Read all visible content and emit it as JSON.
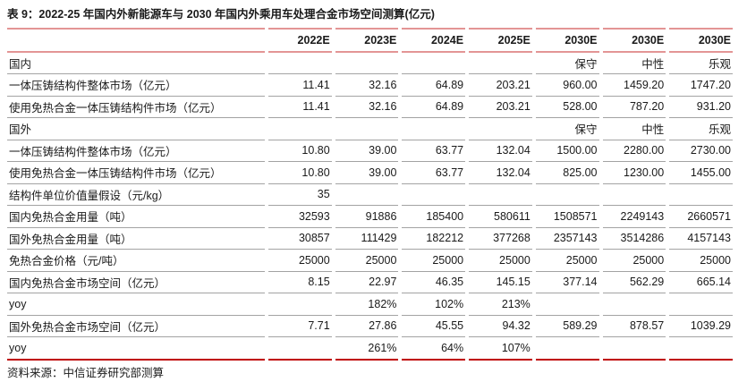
{
  "title": "表 9：2022-25 年国内外新能源车与 2030 年国内外乘用车处理合金市场空间测算(亿元)",
  "source": "资料来源：中信证券研究部测算",
  "colors": {
    "header_line": "#e39595",
    "row_line": "#a3a3a3",
    "bottom_line": "#bf0000",
    "text": "#1a1a1a"
  },
  "table": {
    "columns": [
      "",
      "2022E",
      "2023E",
      "2024E",
      "2025E",
      "2030E",
      "2030E",
      "2030E"
    ],
    "rows": [
      {
        "label": "国内",
        "values": [
          "",
          "",
          "",
          "",
          "保守",
          "中性",
          "乐观"
        ]
      },
      {
        "label": "一体压铸结构件整体市场（亿元）",
        "values": [
          "11.41",
          "32.16",
          "64.89",
          "203.21",
          "960.00",
          "1459.20",
          "1747.20"
        ]
      },
      {
        "label": "使用免热合金一体压铸结构件市场（亿元）",
        "values": [
          "11.41",
          "32.16",
          "64.89",
          "203.21",
          "528.00",
          "787.20",
          "931.20"
        ]
      },
      {
        "label": "国外",
        "values": [
          "",
          "",
          "",
          "",
          "保守",
          "中性",
          "乐观"
        ]
      },
      {
        "label": "一体压铸结构件整体市场（亿元）",
        "values": [
          "10.80",
          "39.00",
          "63.77",
          "132.04",
          "1500.00",
          "2280.00",
          "2730.00"
        ]
      },
      {
        "label": "使用免热合金一体压铸结构件市场（亿元）",
        "values": [
          "10.80",
          "39.00",
          "63.77",
          "132.04",
          "825.00",
          "1230.00",
          "1455.00"
        ]
      },
      {
        "label": "结构件单位价值量假设（元/kg）",
        "values": [
          "35",
          "",
          "",
          "",
          "",
          "",
          ""
        ]
      },
      {
        "label": "国内免热合金用量（吨）",
        "values": [
          "32593",
          "91886",
          "185400",
          "580611",
          "1508571",
          "2249143",
          "2660571"
        ]
      },
      {
        "label": "国外免热合金用量（吨）",
        "values": [
          "30857",
          "111429",
          "182212",
          "377268",
          "2357143",
          "3514286",
          "4157143"
        ]
      },
      {
        "label": "免热合金价格（元/吨）",
        "values": [
          "25000",
          "25000",
          "25000",
          "25000",
          "25000",
          "25000",
          "25000"
        ]
      },
      {
        "label": "国内免热合金市场空间（亿元）",
        "values": [
          "8.15",
          "22.97",
          "46.35",
          "145.15",
          "377.14",
          "562.29",
          "665.14"
        ]
      },
      {
        "label": "yoy",
        "values": [
          "",
          "182%",
          "102%",
          "213%",
          "",
          "",
          ""
        ]
      },
      {
        "label": "国外免热合金市场空间（亿元）",
        "values": [
          "7.71",
          "27.86",
          "45.55",
          "94.32",
          "589.29",
          "878.57",
          "1039.29"
        ]
      },
      {
        "label": "yoy",
        "values": [
          "",
          "261%",
          "64%",
          "107%",
          "",
          "",
          ""
        ]
      }
    ]
  }
}
